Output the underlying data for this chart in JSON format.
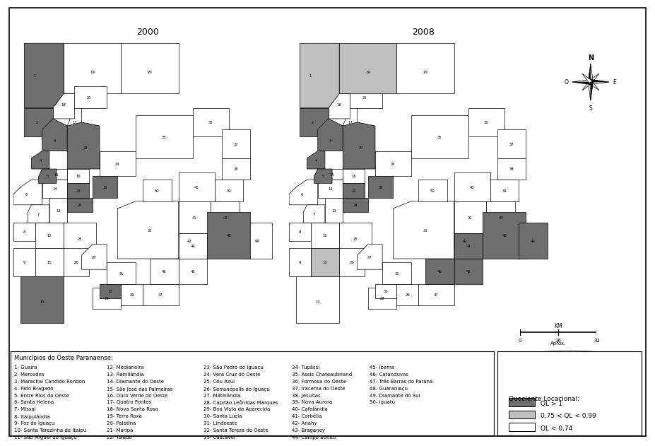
{
  "title_2000": "2000",
  "title_2008": "2008",
  "background_color": "#ffffff",
  "border_color": "#000000",
  "dark_gray": "#6e6e6e",
  "medium_gray": "#c0c0c0",
  "light_gray": "#f0f0f0",
  "white": "#ffffff",
  "legend_title": "Quociente Locacional:",
  "legend_items": [
    {
      "label": "QL > 1",
      "color": "#6e6e6e"
    },
    {
      "label": "0,75 < QL < 0,99",
      "color": "#c0c0c0"
    },
    {
      "label": "QL < 0,74",
      "color": "#ffffff"
    }
  ],
  "municipios_header": "Municípios do Oeste Paranaense:",
  "municipios_col1": [
    "1- Guaíra",
    "2- Mercedes",
    "3- Marechal Cândido Rondon",
    "4- Pato Bragado",
    "5- Entre Rios do Oeste",
    "6- Santa Helena",
    "7- Missal",
    "8- Itaipulândia",
    "9- Foz do Iguaçu",
    "10- Santa Terezinha de Itaipu",
    "11- São Miguel do Iguaçu"
  ],
  "municipios_col2": [
    "12- Medianeira",
    "13- Ramilândia",
    "14- Diamante do Oeste",
    "15- São José das Palmeiras",
    "16- Ouro Verde do Oeste",
    "17- Quatro Pontes",
    "18- Nova Santa Rosa",
    "19- Terra Roxa",
    "20- Palotina",
    "21- Maripá",
    "22- Toledo"
  ],
  "municipios_col3": [
    "23- São Pedro do Iguaçu",
    "24- Vera Cruz do Oeste",
    "25- Céu Azul",
    "26- Serranópolis do Iguaçu",
    "27- Matelândia",
    "28- Capitão Leônidas Marques",
    "29- Boa Vista da Aparecida",
    "30- Santa Lúcia",
    "31- Lindoeste",
    "32- Santa Tereza do Oeste",
    "33- Cascavel"
  ],
  "municipios_col4": [
    "34- Tupãssi",
    "35- Assis Chateaubriand",
    "36- Formosa do Oeste",
    "37- Iracema do Oeste",
    "38- Jesuítas",
    "39- Nova Aurora",
    "40- Cafelândia",
    "41- Corbélia",
    "42- Anahy",
    "43- Braganey",
    "44- Campo Bonito"
  ],
  "municipios_col5": [
    "45- Ibema",
    "46- Catanduvas",
    "47- Três Barras do Paraná",
    "48- Guaraniaçu",
    "49- Diamante do Sul",
    "50- Iguatu"
  ],
  "dark_2000": [
    1,
    2,
    3,
    4,
    5,
    11,
    22,
    23,
    24,
    30,
    32,
    48
  ],
  "medium_2000": [],
  "dark_2008": [
    2,
    3,
    4,
    5,
    22,
    23,
    24,
    32,
    44,
    45,
    46,
    48,
    49
  ],
  "medium_2008": [
    1,
    10,
    19
  ]
}
